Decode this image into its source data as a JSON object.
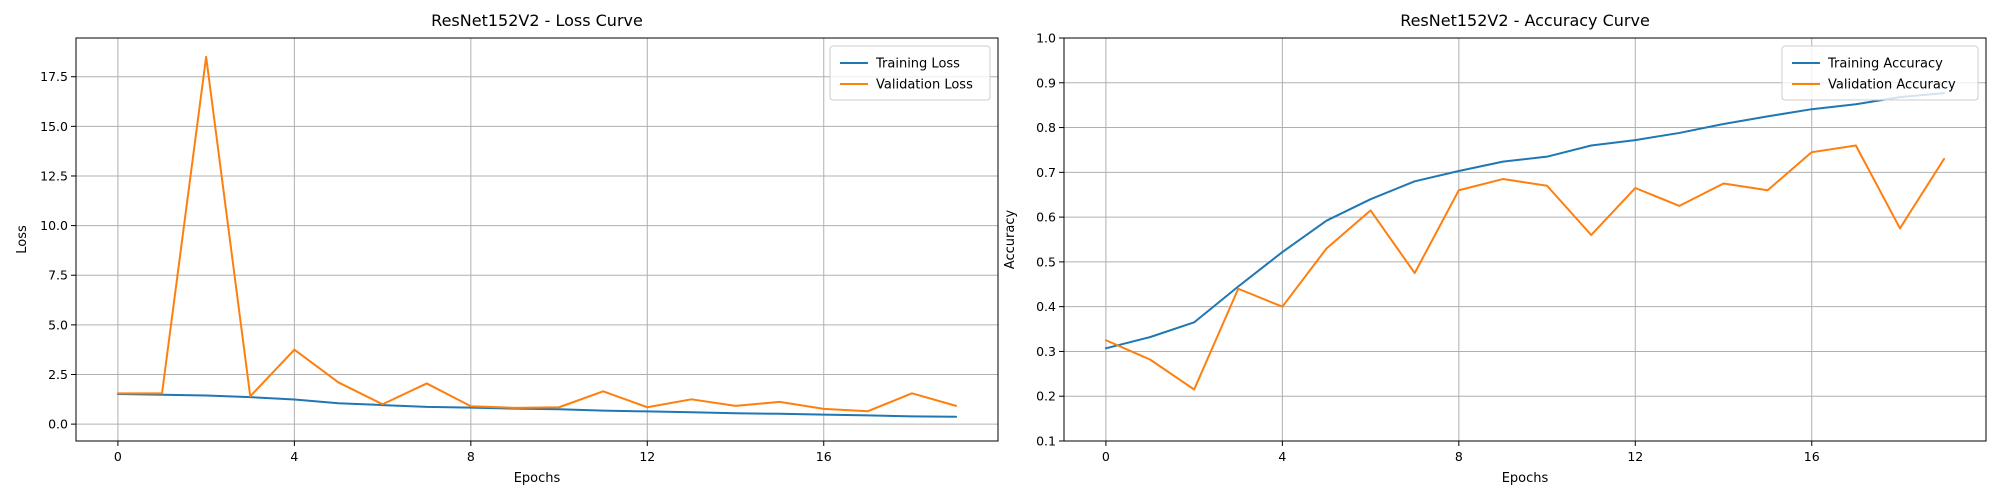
{
  "chart_data": [
    {
      "type": "line",
      "title": "ResNet152V2 - Loss Curve",
      "xlabel": "Epochs",
      "ylabel": "Loss",
      "x": [
        0,
        1,
        2,
        3,
        4,
        5,
        6,
        7,
        8,
        9,
        10,
        11,
        12,
        13,
        14,
        15,
        16,
        17,
        18,
        19
      ],
      "xticks": [
        0,
        4,
        8,
        12,
        16
      ],
      "xtick_labels": [
        "0",
        "4",
        "8",
        "12",
        "16"
      ],
      "xlim": [
        -0.95,
        19.95
      ],
      "ylim": [
        -0.85,
        19.45
      ],
      "yticks": [
        0.0,
        2.5,
        5.0,
        7.5,
        10.0,
        12.5,
        15.0,
        17.5
      ],
      "ytick_labels": [
        "0.0",
        "2.5",
        "5.0",
        "7.5",
        "10.0",
        "12.5",
        "15.0",
        "17.5"
      ],
      "grid": true,
      "legend_position": "upper right",
      "series": [
        {
          "name": "Training Loss",
          "color": "#1f77b4",
          "values": [
            1.52,
            1.48,
            1.44,
            1.36,
            1.24,
            1.05,
            0.96,
            0.87,
            0.83,
            0.78,
            0.75,
            0.68,
            0.64,
            0.6,
            0.55,
            0.52,
            0.48,
            0.44,
            0.39,
            0.37
          ]
        },
        {
          "name": "Validation Loss",
          "color": "#ff7f0e",
          "values": [
            1.55,
            1.55,
            18.5,
            1.4,
            3.75,
            2.1,
            1.0,
            2.05,
            0.9,
            0.82,
            0.85,
            1.65,
            0.85,
            1.25,
            0.92,
            1.12,
            0.77,
            0.65,
            1.55,
            0.92
          ]
        }
      ]
    },
    {
      "type": "line",
      "title": "ResNet152V2 - Accuracy Curve",
      "xlabel": "Epochs",
      "ylabel": "Accuracy",
      "x": [
        0,
        1,
        2,
        3,
        4,
        5,
        6,
        7,
        8,
        9,
        10,
        11,
        12,
        13,
        14,
        15,
        16,
        17,
        18,
        19
      ],
      "xticks": [
        0,
        4,
        8,
        12,
        16
      ],
      "xtick_labels": [
        "0",
        "4",
        "8",
        "12",
        "16"
      ],
      "xlim": [
        -0.95,
        19.95
      ],
      "ylim": [
        0.1,
        1.0
      ],
      "yticks": [
        0.1,
        0.2,
        0.3,
        0.4,
        0.5,
        0.6,
        0.7,
        0.8,
        0.9,
        1.0
      ],
      "ytick_labels": [
        "0.1",
        "0.2",
        "0.3",
        "0.4",
        "0.5",
        "0.6",
        "0.7",
        "0.8",
        "0.9",
        "1.0"
      ],
      "grid": true,
      "legend_position": "upper right",
      "series": [
        {
          "name": "Training Accuracy",
          "color": "#1f77b4",
          "values": [
            0.307,
            0.332,
            0.365,
            0.445,
            0.522,
            0.592,
            0.64,
            0.68,
            0.703,
            0.724,
            0.735,
            0.76,
            0.772,
            0.788,
            0.808,
            0.825,
            0.841,
            0.852,
            0.868,
            0.877
          ]
        },
        {
          "name": "Validation Accuracy",
          "color": "#ff7f0e",
          "values": [
            0.325,
            0.282,
            0.215,
            0.44,
            0.4,
            0.53,
            0.615,
            0.475,
            0.66,
            0.685,
            0.67,
            0.56,
            0.665,
            0.625,
            0.675,
            0.66,
            0.745,
            0.76,
            0.575,
            0.73
          ]
        }
      ]
    }
  ]
}
